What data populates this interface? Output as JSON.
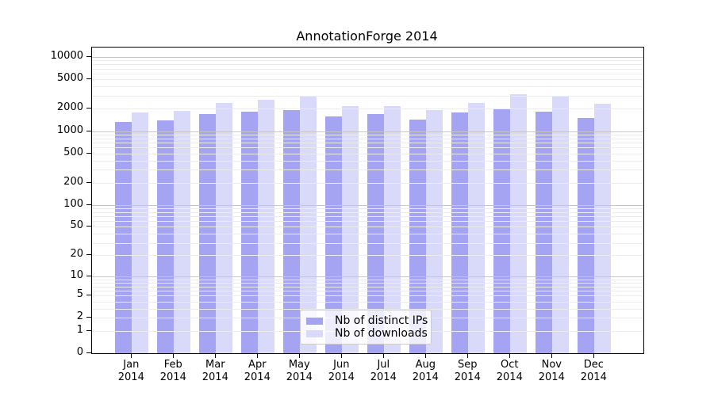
{
  "chart_data": {
    "type": "bar",
    "title": "AnnotationForge 2014",
    "xlabel": "",
    "ylabel": "",
    "y_scale": "log10(1+x)",
    "grid": true,
    "legend_position": "bottom-center",
    "categories": [
      "Jan",
      "Feb",
      "Mar",
      "Apr",
      "May",
      "Jun",
      "Jul",
      "Aug",
      "Sep",
      "Oct",
      "Nov",
      "Dec"
    ],
    "year_label": "2014",
    "y_ticks": [
      0,
      1,
      2,
      5,
      10,
      20,
      50,
      100,
      200,
      500,
      1000,
      2000,
      5000,
      10000
    ],
    "ylim": [
      0,
      12000
    ],
    "series": [
      {
        "name": "Nb of distinct IPs",
        "color": "#a4a4f3",
        "values": [
          1320,
          1400,
          1700,
          1830,
          1940,
          1590,
          1680,
          1430,
          1780,
          2000,
          1850,
          1500
        ]
      },
      {
        "name": "Nb of downloads",
        "color": "#d9d9f9",
        "values": [
          1780,
          1890,
          2380,
          2660,
          2950,
          2150,
          2170,
          1920,
          2420,
          3150,
          2900,
          2320
        ]
      }
    ]
  },
  "colors": {
    "major_grid": "#c6c6c6",
    "minor_grid": "#ececec",
    "frame": "#000000",
    "legend_border": "#cccccc"
  }
}
